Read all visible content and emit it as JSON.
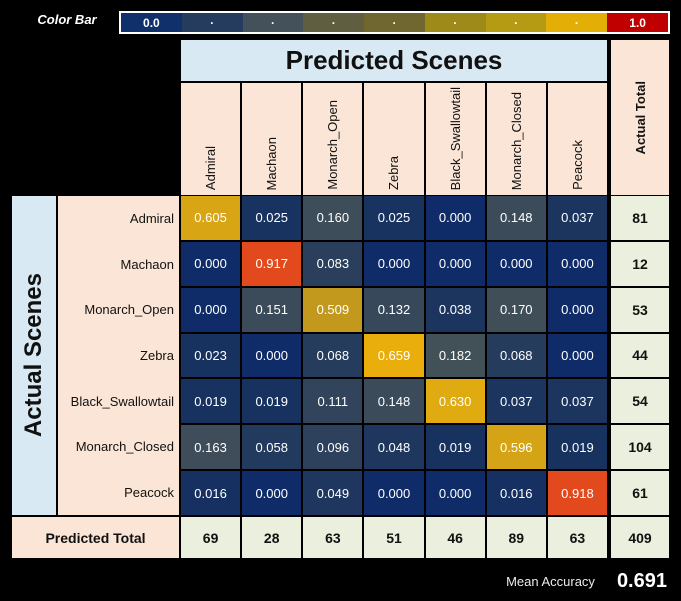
{
  "color_bar": {
    "label": "Color Bar",
    "cells": [
      {
        "label": "0.0",
        "color": "#10306B"
      },
      {
        "label": "·",
        "color": "#263C5E"
      },
      {
        "label": "·",
        "color": "#44505A"
      },
      {
        "label": "·",
        "color": "#5F5E41"
      },
      {
        "label": "·",
        "color": "#6F6630"
      },
      {
        "label": "·",
        "color": "#9D8A19"
      },
      {
        "label": "·",
        "color": "#B59B13"
      },
      {
        "label": "·",
        "color": "#E3AE06"
      },
      {
        "label": "1.0",
        "color": "#C00000"
      }
    ]
  },
  "labels": {
    "predicted_header": "Predicted Scenes",
    "actual_header": "Actual Scenes",
    "actual_total": "Actual Total",
    "predicted_total": "Predicted Total",
    "mean_accuracy_label": "Mean Accuracy",
    "mean_accuracy_value": "0.691"
  },
  "colors": {
    "page_bg": "#000000",
    "header_blue": "#D9E9F3",
    "label_peach": "#FBE5D6",
    "total_cream": "#EAF0DD",
    "cell_text": "#FFFFFF",
    "max_red": "#C00000"
  },
  "chart_data": {
    "type": "heatmap",
    "title": "Confusion matrix",
    "x_axis_label": "Predicted Scenes",
    "y_axis_label": "Actual Scenes",
    "categories": [
      "Admiral",
      "Machaon",
      "Monarch_Open",
      "Zebra",
      "Black_Swallowtail",
      "Monarch_Closed",
      "Peacock"
    ],
    "matrix": [
      [
        0.605,
        0.025,
        0.16,
        0.025,
        0.0,
        0.148,
        0.037
      ],
      [
        0.0,
        0.917,
        0.083,
        0.0,
        0.0,
        0.0,
        0.0
      ],
      [
        0.0,
        0.151,
        0.509,
        0.132,
        0.038,
        0.17,
        0.0
      ],
      [
        0.023,
        0.0,
        0.068,
        0.659,
        0.182,
        0.068,
        0.0
      ],
      [
        0.019,
        0.019,
        0.111,
        0.148,
        0.63,
        0.037,
        0.037
      ],
      [
        0.163,
        0.058,
        0.096,
        0.048,
        0.019,
        0.596,
        0.019
      ],
      [
        0.016,
        0.0,
        0.049,
        0.0,
        0.0,
        0.016,
        0.918
      ]
    ],
    "actual_totals": [
      81,
      12,
      53,
      44,
      54,
      104,
      61
    ],
    "predicted_totals": [
      69,
      28,
      63,
      51,
      46,
      89,
      63
    ],
    "grand_total": 409,
    "value_range": [
      0.0,
      1.0
    ],
    "decimals": 3,
    "mean_accuracy": 0.691,
    "colormap_stops": [
      [
        0.0,
        "#102C68"
      ],
      [
        0.02,
        "#17325F"
      ],
      [
        0.04,
        "#1C355E"
      ],
      [
        0.06,
        "#233A5D"
      ],
      [
        0.085,
        "#2A3F5C"
      ],
      [
        0.115,
        "#33455B"
      ],
      [
        0.15,
        "#3B4B59"
      ],
      [
        0.185,
        "#435158"
      ],
      [
        0.509,
        "#C3991D"
      ],
      [
        0.6,
        "#D6A416"
      ],
      [
        0.635,
        "#E2AB10"
      ],
      [
        0.66,
        "#E9AE0B"
      ],
      [
        0.92,
        "#E2481C"
      ],
      [
        1.0,
        "#C00000"
      ]
    ]
  }
}
